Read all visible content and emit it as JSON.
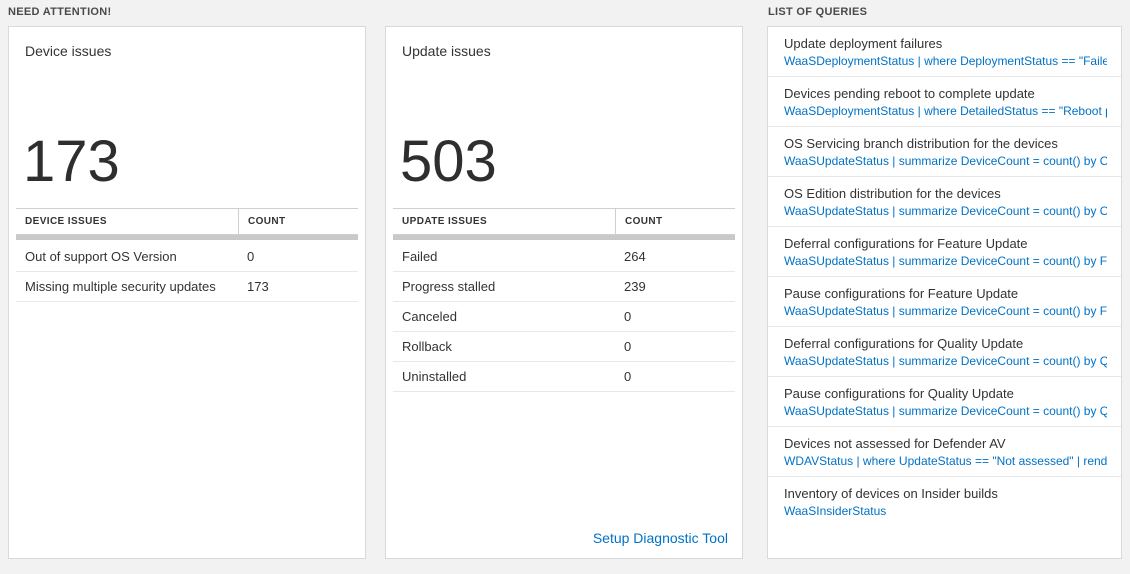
{
  "colors": {
    "background": "#f2f2f2",
    "card_background": "#ffffff",
    "link_blue": "#0072c6",
    "number_text": "#2e2e2e"
  },
  "need_attention": {
    "header": "NEED ATTENTION!",
    "device_card": {
      "title": "Device issues",
      "count": "173",
      "table": {
        "headers": [
          "DEVICE ISSUES",
          "COUNT"
        ],
        "rows": [
          {
            "label": "Out of support OS Version",
            "count": "0"
          },
          {
            "label": "Missing multiple security updates",
            "count": "173"
          }
        ]
      }
    },
    "update_card": {
      "title": "Update issues",
      "count": "503",
      "table": {
        "headers": [
          "UPDATE ISSUES",
          "COUNT"
        ],
        "rows": [
          {
            "label": "Failed",
            "count": "264"
          },
          {
            "label": "Progress stalled",
            "count": "239"
          },
          {
            "label": "Canceled",
            "count": "0"
          },
          {
            "label": "Rollback",
            "count": "0"
          },
          {
            "label": "Uninstalled",
            "count": "0"
          }
        ]
      },
      "link": "Setup Diagnostic Tool"
    }
  },
  "queries": {
    "header": "LIST OF QUERIES",
    "items": [
      {
        "title": "Update deployment failures",
        "query": "WaaSDeploymentStatus | where DeploymentStatus == \"Failed\" |..."
      },
      {
        "title": "Devices pending reboot to complete update",
        "query": "WaaSDeploymentStatus | where DetailedStatus == \"Reboot pend..."
      },
      {
        "title": "OS Servicing branch distribution for the devices",
        "query": "WaaSUpdateStatus | summarize DeviceCount = count() by OSSer..."
      },
      {
        "title": "OS Edition distribution for the devices",
        "query": "WaaSUpdateStatus | summarize DeviceCount = count() by OSEdit..."
      },
      {
        "title": "Deferral configurations for Feature Update",
        "query": "WaaSUpdateStatus | summarize DeviceCount = count() by Featur..."
      },
      {
        "title": "Pause configurations for Feature Update",
        "query": "WaaSUpdateStatus | summarize DeviceCount = count() by Featur..."
      },
      {
        "title": "Deferral configurations for Quality Update",
        "query": "WaaSUpdateStatus | summarize DeviceCount = count() by Qualit..."
      },
      {
        "title": "Pause configurations for Quality Update",
        "query": "WaaSUpdateStatus | summarize DeviceCount = count() by Qualit..."
      },
      {
        "title": "Devices not assessed for Defender AV",
        "query": "WDAVStatus | where UpdateStatus == \"Not assessed\" | render ta..."
      },
      {
        "title": "Inventory of devices on Insider builds",
        "query": "WaaSInsiderStatus"
      }
    ]
  }
}
